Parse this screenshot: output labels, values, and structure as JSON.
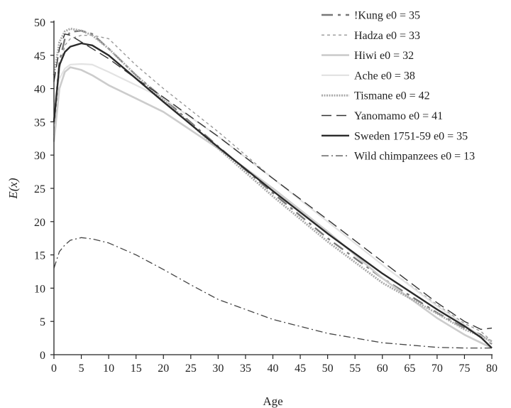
{
  "chart_data": {
    "type": "line",
    "title": "",
    "xlabel": "Age",
    "ylabel": "E(x)",
    "xlim": [
      0,
      80
    ],
    "ylim": [
      0,
      50
    ],
    "xticks": [
      0,
      5,
      10,
      15,
      20,
      25,
      30,
      35,
      40,
      45,
      50,
      55,
      60,
      65,
      70,
      75,
      80
    ],
    "yticks": [
      0,
      5,
      10,
      15,
      20,
      25,
      30,
      35,
      40,
      45,
      50
    ],
    "xtick_labels": [
      "0",
      "5",
      "10",
      "15",
      "20",
      "25",
      "30",
      "35",
      "40",
      "45",
      "50",
      "55",
      "60",
      "65",
      "70",
      "75",
      "80"
    ],
    "ytick_labels": [
      "0",
      "5",
      "10",
      "15",
      "20",
      "25",
      "30",
      "35",
      "40",
      "45",
      "50"
    ],
    "grid": false,
    "legend_position": "top-right",
    "series": [
      {
        "name": "!Kung e0 = 35",
        "color": "#777777",
        "dash": "16,7,4,7",
        "width": 2.4,
        "x": [
          0,
          1,
          2,
          3,
          5,
          7,
          10,
          15,
          20,
          30,
          40,
          50,
          60,
          70,
          75,
          78,
          80
        ],
        "y": [
          35,
          44,
          47.5,
          48.5,
          48.7,
          48.2,
          46,
          42,
          38.5,
          31.3,
          24.3,
          17.5,
          11.5,
          6.3,
          4,
          3,
          1.6
        ]
      },
      {
        "name": "Hadza e0 = 33",
        "color": "#999999",
        "dash": "4,4",
        "width": 1.4,
        "x": [
          0,
          1,
          2,
          3,
          5,
          7,
          10,
          15,
          20,
          30,
          40,
          50,
          60,
          70,
          75,
          78,
          80
        ],
        "y": [
          33,
          43,
          46.5,
          47.5,
          48,
          48,
          47.5,
          43.5,
          40,
          33.5,
          26.5,
          20,
          13.5,
          7.5,
          4.7,
          3.5,
          2
        ]
      },
      {
        "name": "Hiwi e0 = 32",
        "color": "#cccccc",
        "dash": "",
        "width": 2.6,
        "x": [
          0,
          1,
          2,
          3,
          5,
          7,
          10,
          15,
          20,
          30,
          40,
          50,
          60,
          70,
          75,
          78,
          80
        ],
        "y": [
          32,
          40,
          42.5,
          43.2,
          42.8,
          42,
          40.5,
          38.5,
          36.5,
          31,
          25,
          18.5,
          11.5,
          5.5,
          3,
          1.8,
          1
        ]
      },
      {
        "name": "Ache e0 = 38",
        "color": "#e3e3e3",
        "dash": "",
        "width": 2.2,
        "x": [
          0,
          1,
          2,
          3,
          5,
          7,
          10,
          15,
          20,
          30,
          40,
          50,
          60,
          70,
          75,
          78,
          80
        ],
        "y": [
          38,
          41.5,
          43,
          43.6,
          43.7,
          43.6,
          42.5,
          40.5,
          38.5,
          32.8,
          26.5,
          20,
          13.5,
          7.3,
          4.5,
          2.8,
          1.8
        ]
      },
      {
        "name": "Tismane e0 = 42",
        "color": "#aaaaaa",
        "dash": "2,1.5",
        "width": 3,
        "x": [
          0,
          1,
          2,
          3,
          5,
          7,
          10,
          15,
          20,
          30,
          40,
          50,
          60,
          70,
          75,
          78,
          80
        ],
        "y": [
          42,
          47,
          48.6,
          49,
          48.7,
          48,
          46,
          42,
          38.3,
          31,
          23.8,
          17,
          10.8,
          6.2,
          3.8,
          2.8,
          2
        ]
      },
      {
        "name": "Yanomamo e0 = 41",
        "color": "#333333",
        "dash": "14,7",
        "width": 1.4,
        "x": [
          0,
          1,
          2,
          3,
          5,
          7,
          10,
          15,
          20,
          30,
          40,
          50,
          60,
          70,
          75,
          78,
          80
        ],
        "y": [
          41,
          46,
          48.2,
          48,
          47,
          46,
          44.5,
          41.5,
          38.7,
          32.8,
          26.5,
          20.3,
          14,
          7.8,
          5,
          3.8,
          4
        ]
      },
      {
        "name": "Sweden 1751-59 e0 = 35",
        "color": "#2a2a2a",
        "dash": "",
        "width": 2.4,
        "x": [
          0,
          1,
          2,
          3,
          5,
          7,
          10,
          15,
          20,
          30,
          40,
          50,
          60,
          70,
          75,
          78,
          80
        ],
        "y": [
          35,
          43.5,
          45.5,
          46.3,
          46.8,
          46.5,
          45,
          41.5,
          38,
          31.2,
          24.6,
          18.2,
          12.2,
          6.8,
          4.3,
          2.6,
          1
        ]
      },
      {
        "name": "Wild chimpanzees e0 = 13",
        "color": "#444444",
        "dash": "10,4,2,4",
        "width": 1.3,
        "x": [
          0,
          1,
          2,
          3,
          5,
          7,
          10,
          15,
          20,
          25,
          30,
          40,
          50,
          60,
          70,
          75,
          80
        ],
        "y": [
          13,
          15.5,
          16.5,
          17.2,
          17.6,
          17.4,
          16.8,
          15,
          12.8,
          10.5,
          8.3,
          5.3,
          3.2,
          1.8,
          1.1,
          1,
          1
        ]
      }
    ]
  }
}
